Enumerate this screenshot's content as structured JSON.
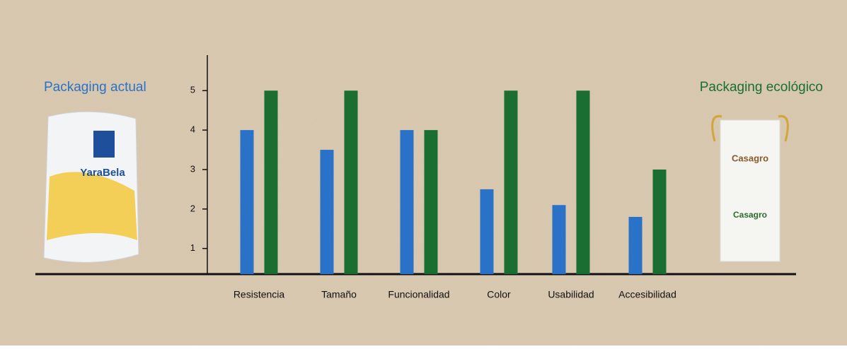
{
  "chart_data": {
    "type": "bar",
    "categories": [
      "Resistencia",
      "Tamaño",
      "Funcionalidad",
      "Color",
      "Usabilidad",
      "Accesibilidad"
    ],
    "series": [
      {
        "name": "Packaging actual",
        "color": "#2a72c8",
        "values": [
          4,
          3.5,
          4,
          2.5,
          2.1,
          1.8
        ]
      },
      {
        "name": "Packaging ecológico",
        "color": "#1b6e31",
        "values": [
          5,
          5,
          4,
          5,
          5,
          3
        ]
      }
    ],
    "ylim": [
      0.35,
      5.9
    ],
    "yticks": [
      1,
      2,
      3,
      4,
      5
    ]
  }
}
